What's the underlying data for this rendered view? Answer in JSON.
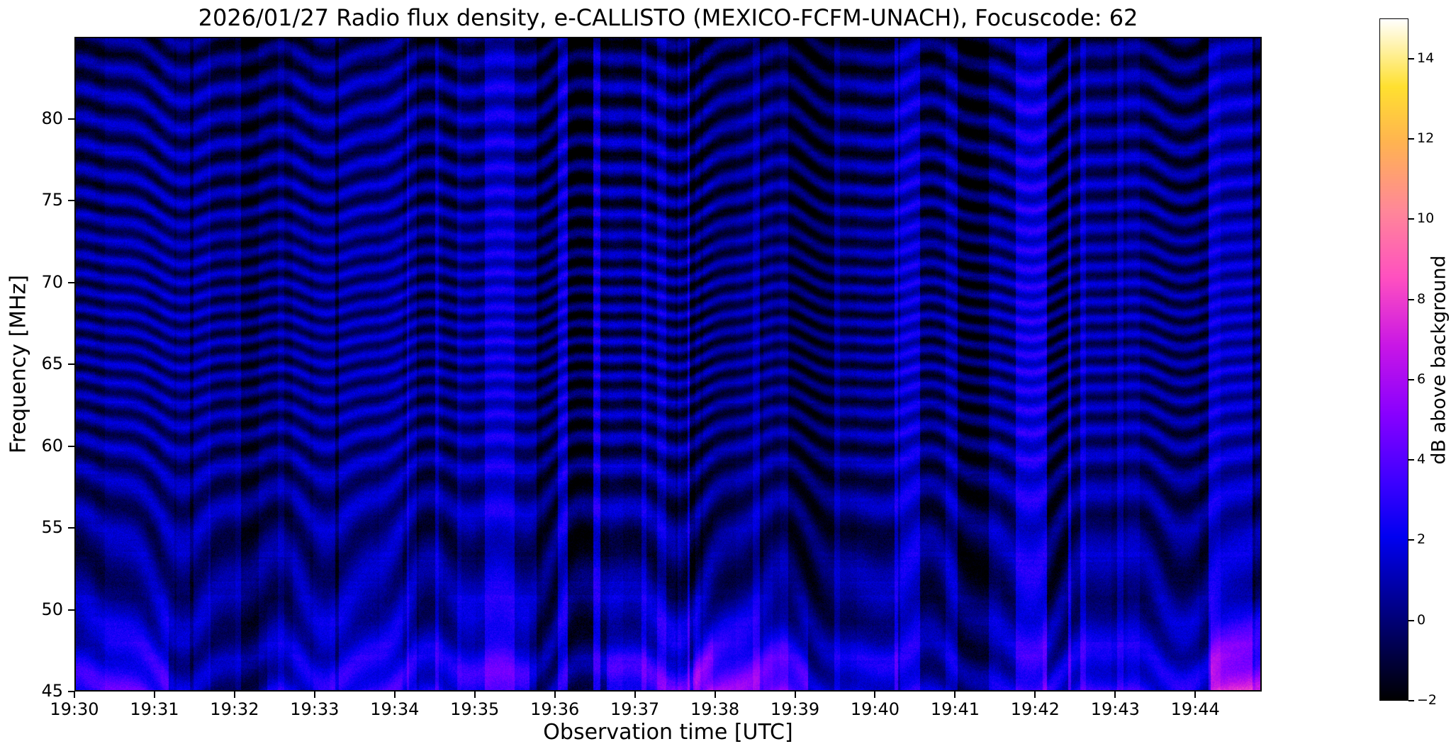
{
  "title": "2026/01/27  Radio flux density, e-CALLISTO (MEXICO-FCFM-UNACH), Focuscode: 62",
  "chart_data": {
    "type": "heatmap",
    "title": "2026/01/27  Radio flux density, e-CALLISTO (MEXICO-FCFM-UNACH), Focuscode: 62",
    "xlabel": "Observation time [UTC]",
    "ylabel": "Frequency [MHz]",
    "x_axis": {
      "ticks": [
        "19:30",
        "19:31",
        "19:32",
        "19:33",
        "19:34",
        "19:35",
        "19:36",
        "19:37",
        "19:38",
        "19:39",
        "19:40",
        "19:41",
        "19:42",
        "19:43",
        "19:44"
      ],
      "start": "19:30",
      "end": "19:44:50",
      "span_minutes": 14.83
    },
    "y_axis": {
      "ticks": [
        80,
        75,
        70,
        65,
        60,
        55,
        50,
        45
      ],
      "range": [
        45,
        85
      ],
      "unit": "MHz"
    },
    "colorbar": {
      "label": "dB above background",
      "ticks": [
        14,
        12,
        10,
        8,
        6,
        4,
        2,
        0,
        -2
      ],
      "range": [
        -2,
        15
      ],
      "colormap": "gnuplot2-like (black - blue - violet - magenta - pink - orange - yellow - white)",
      "colormap_stops": [
        {
          "pos": 0.0,
          "color": "#000000"
        },
        {
          "pos": 0.08,
          "color": "#000050"
        },
        {
          "pos": 0.16,
          "color": "#0000a0"
        },
        {
          "pos": 0.24,
          "color": "#0000f0"
        },
        {
          "pos": 0.32,
          "color": "#3c00ff"
        },
        {
          "pos": 0.42,
          "color": "#8800ff"
        },
        {
          "pos": 0.52,
          "color": "#c816e6"
        },
        {
          "pos": 0.62,
          "color": "#ff50c0"
        },
        {
          "pos": 0.72,
          "color": "#ff8898"
        },
        {
          "pos": 0.82,
          "color": "#ffb450"
        },
        {
          "pos": 0.9,
          "color": "#ffe030"
        },
        {
          "pos": 1.0,
          "color": "#ffffff"
        }
      ]
    },
    "content_summary": {
      "description": "Dynamic radio spectrogram (e-CALLISTO quicklook). Dark navy/blue noise background crossed by wavy horizontal interference fringes; numerous narrow vertical RFI bands of brighter blue across the full band; enhanced pink/magenta emission patches below ~52 MHz occurring in time segments (e.g. near 19:30, 19:33-19:35, 19:39-19:41, 19:43).",
      "background_level_db": [
        -1.5,
        2
      ],
      "vertical_band_level_db": [
        2,
        4
      ],
      "low_frequency_patch_level_db": [
        4,
        7
      ],
      "low_frequency_patch_range_mhz": [
        45,
        52
      ]
    }
  }
}
